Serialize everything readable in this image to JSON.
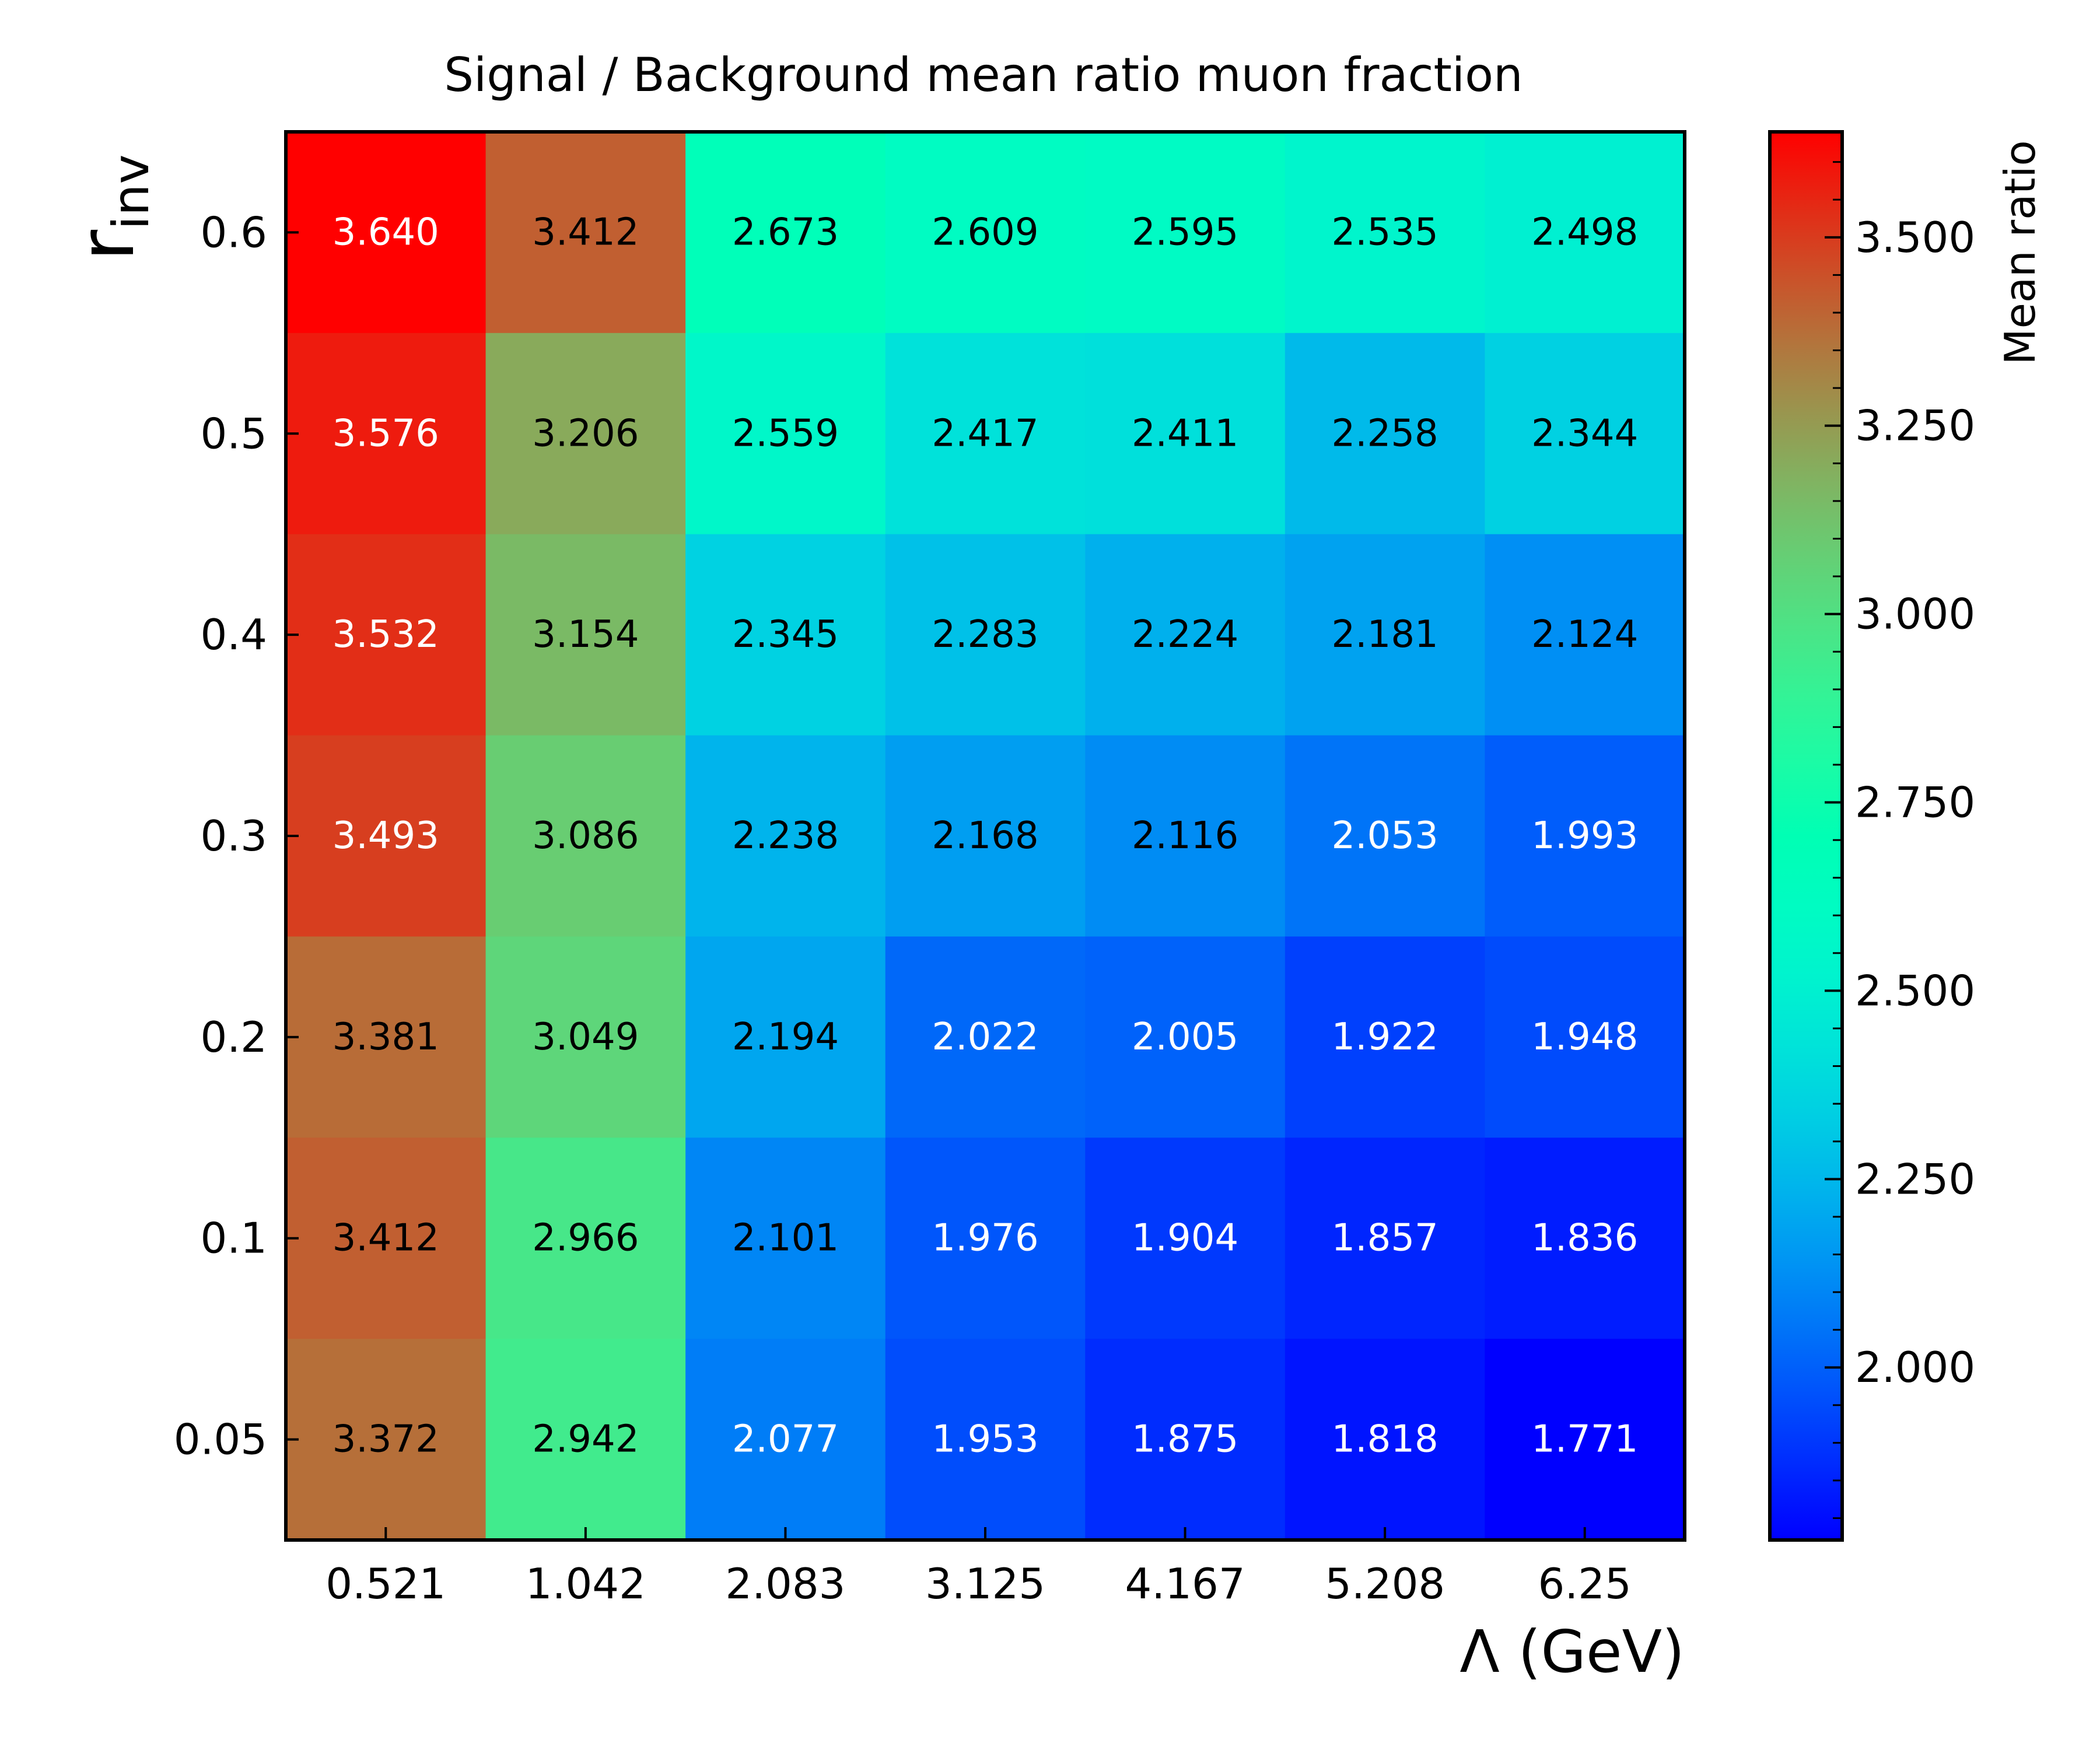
{
  "chart_data": {
    "type": "heatmap",
    "title": "Signal / Background mean ratio muon fraction",
    "xlabel": "Λ (GeV)",
    "ylabel_main": "r",
    "ylabel_sub": "inv",
    "x_categories": [
      "0.521",
      "1.042",
      "2.083",
      "3.125",
      "4.167",
      "5.208",
      "6.25"
    ],
    "y_categories_top_to_bottom": [
      "0.6",
      "0.5",
      "0.4",
      "0.3",
      "0.2",
      "0.1",
      "0.05"
    ],
    "values_top_to_bottom": [
      [
        3.64,
        3.412,
        2.673,
        2.609,
        2.595,
        2.535,
        2.498
      ],
      [
        3.576,
        3.206,
        2.559,
        2.417,
        2.411,
        2.258,
        2.344
      ],
      [
        3.532,
        3.154,
        2.345,
        2.283,
        2.224,
        2.181,
        2.124
      ],
      [
        3.493,
        3.086,
        2.238,
        2.168,
        2.116,
        2.053,
        1.993
      ],
      [
        3.381,
        3.049,
        2.194,
        2.022,
        2.005,
        1.922,
        1.948
      ],
      [
        3.412,
        2.966,
        2.101,
        1.976,
        1.904,
        1.857,
        1.836
      ],
      [
        3.372,
        2.942,
        2.077,
        1.953,
        1.875,
        1.818,
        1.771
      ]
    ],
    "value_format_decimals": 3,
    "colormap": "rainbow",
    "colorbar": {
      "label": "Mean ratio",
      "vmin": 1.771,
      "vmax": 3.64,
      "major_ticks": [
        2.0,
        2.25,
        2.5,
        2.75,
        3.0,
        3.25,
        3.5
      ],
      "major_tick_labels": [
        "2.000",
        "2.250",
        "2.500",
        "2.750",
        "3.000",
        "3.250",
        "3.500"
      ],
      "minor_step": 0.05
    }
  }
}
